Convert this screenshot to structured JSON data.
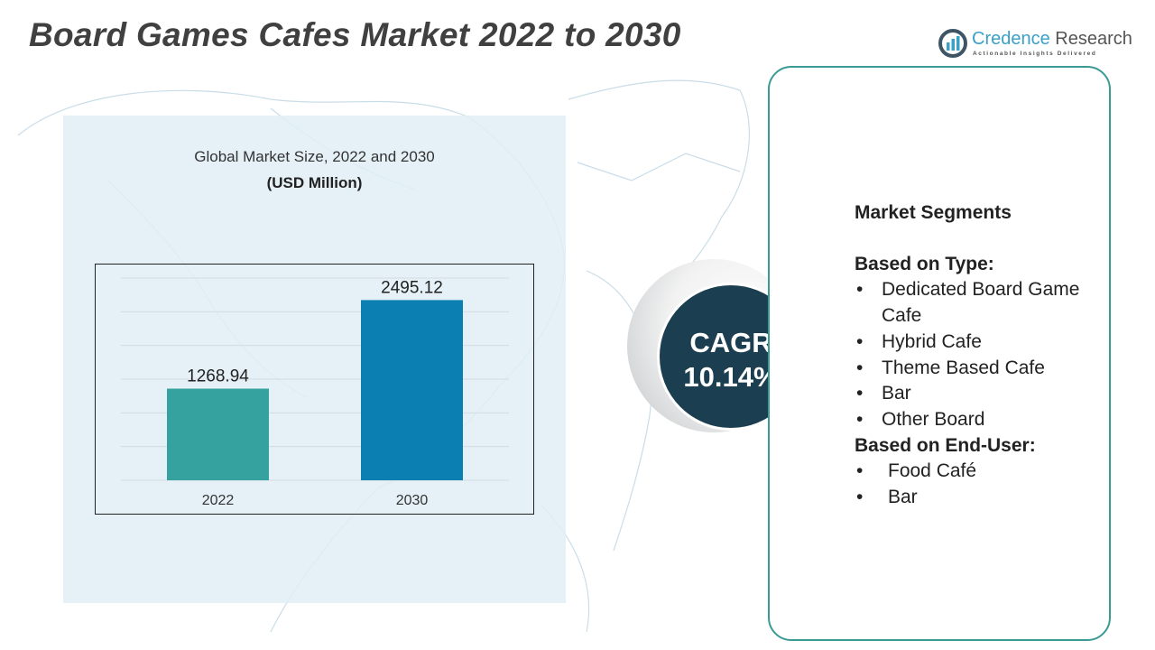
{
  "header": {
    "title": "Board Games Cafes Market 2022 to 2030"
  },
  "logo": {
    "name_part1": "Credence",
    "name_part2": " Research",
    "tagline": "Actionable Insights Delivered",
    "icon": "bar-chart-logo-icon"
  },
  "chart_panel": {
    "title": "Global Market Size,  2022 and 2030",
    "unit": "(USD Million)"
  },
  "chart_data": {
    "type": "bar",
    "title": "Global Market Size,  2022 and 2030",
    "ylabel": "(USD Million)",
    "categories": [
      "2022",
      "2030"
    ],
    "values": [
      1268.94,
      2495.12
    ],
    "labels": [
      "1268.94",
      "2495.12"
    ],
    "colors": [
      "#35a2a0",
      "#0b7fb1"
    ],
    "ylim": [
      0,
      2800
    ],
    "grid": true
  },
  "cagr": {
    "label": "CAGR",
    "value": "10.14%"
  },
  "segments": {
    "title": "Market Segments",
    "type_heading": "Based on Type:",
    "type_items": [
      "Dedicated Board Game Cafe",
      "Hybrid Cafe",
      "Theme Based Cafe",
      "Bar",
      "Other Board"
    ],
    "enduser_heading": "Based on End-User:",
    "enduser_items": [
      "Food Café",
      "Bar"
    ]
  },
  "colors": {
    "accent": "#3a9a94",
    "cagr_bg": "#1b3f50",
    "panel_bg": "#e1eef6"
  }
}
